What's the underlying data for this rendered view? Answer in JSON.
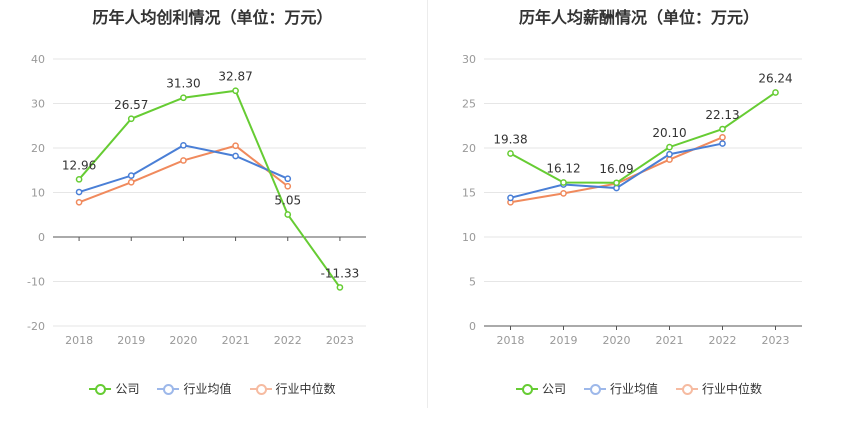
{
  "colors": {
    "company": "#66cc33",
    "avg": "#4a7fd6",
    "median": "#f08a5d"
  },
  "legend": [
    "公司",
    "行业均值",
    "行业中位数"
  ],
  "chart_data": [
    {
      "type": "line",
      "title": "历年人均创利情况（单位：万元）",
      "categories": [
        "2018",
        "2019",
        "2020",
        "2021",
        "2022",
        "2023"
      ],
      "ylim": [
        -20,
        40
      ],
      "yticks": [
        -20,
        -10,
        0,
        10,
        20,
        30,
        40
      ],
      "grid": true,
      "legend_position": "bottom",
      "series": [
        {
          "name": "公司",
          "values": [
            12.96,
            26.57,
            31.3,
            32.87,
            5.05,
            -11.33
          ],
          "labels": [
            "12.96",
            "26.57",
            "31.30",
            "32.87",
            "5.05",
            "-11.33"
          ]
        },
        {
          "name": "行业均值",
          "values": [
            10.1,
            13.8,
            20.6,
            18.2,
            13.1,
            null
          ]
        },
        {
          "name": "行业中位数",
          "values": [
            7.8,
            12.3,
            17.2,
            20.5,
            11.4,
            null
          ]
        }
      ]
    },
    {
      "type": "line",
      "title": "历年人均薪酬情况（单位：万元）",
      "categories": [
        "2018",
        "2019",
        "2020",
        "2021",
        "2022",
        "2023"
      ],
      "ylim": [
        0,
        30
      ],
      "yticks": [
        0,
        5,
        10,
        15,
        20,
        25,
        30
      ],
      "grid": true,
      "legend_position": "bottom",
      "series": [
        {
          "name": "公司",
          "values": [
            19.38,
            16.12,
            16.09,
            20.1,
            22.13,
            26.24
          ],
          "labels": [
            "19.38",
            "16.12",
            "16.09",
            "20.10",
            "22.13",
            "26.24"
          ]
        },
        {
          "name": "行业均值",
          "values": [
            14.4,
            15.9,
            15.5,
            19.3,
            20.5,
            null
          ]
        },
        {
          "name": "行业中位数",
          "values": [
            13.9,
            14.9,
            16.0,
            18.7,
            21.2,
            null
          ]
        }
      ]
    }
  ]
}
